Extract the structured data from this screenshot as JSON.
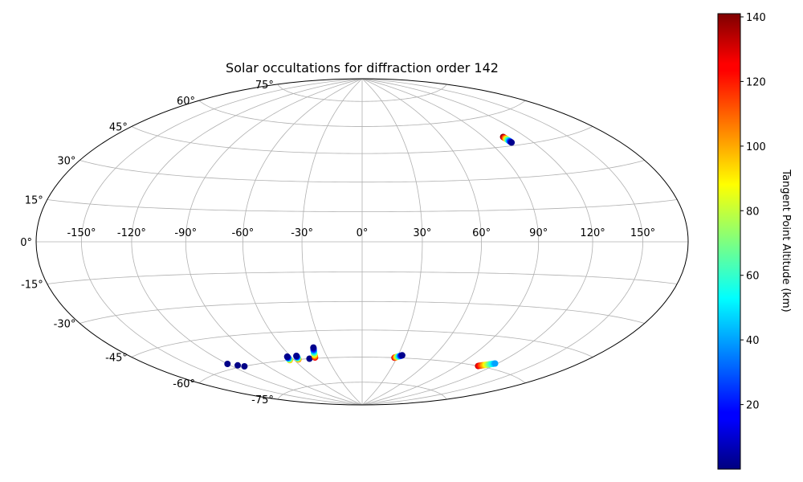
{
  "chart_data": {
    "type": "scatter",
    "projection": "aitoff-hammer",
    "title": "Solar occultations for diffraction order 142",
    "grid": true,
    "lon_ticks": [
      -150,
      -120,
      -90,
      -60,
      -30,
      0,
      30,
      60,
      90,
      120,
      150
    ],
    "lon_tick_labels": [
      "-150°",
      "-120°",
      "-90°",
      "-60°",
      "-30°",
      "0°",
      "30°",
      "60°",
      "90°",
      "120°",
      "150°"
    ],
    "lat_ticks": [
      75,
      60,
      45,
      30,
      15,
      0,
      -15,
      -30,
      -45,
      -60,
      -75
    ],
    "lat_tick_labels": [
      "75°",
      "60°",
      "45°",
      "30°",
      "15°",
      "0°",
      "-15°",
      "-30°",
      "-45°",
      "-60°",
      "-75°"
    ],
    "colorbar": {
      "label": "Tangent Point Altitude (km)",
      "vmin": 0,
      "vmax": 141,
      "ticks": [
        20,
        40,
        60,
        80,
        100,
        120,
        140
      ],
      "tick_labels": [
        "20",
        "40",
        "60",
        "80",
        "100",
        "120",
        "140"
      ],
      "colormap": "jet"
    },
    "tracks": [
      {
        "start": [
          104,
          49.5
        ],
        "end": [
          105,
          46.5
        ],
        "alt_start": 141,
        "alt_end": 2
      },
      {
        "start": [
          -120,
          -57.5
        ],
        "end": [
          -120,
          -57.5
        ],
        "alt_start": 1,
        "alt_end": 1
      },
      {
        "start": [
          -114,
          -59
        ],
        "end": [
          -114,
          -59
        ],
        "alt_start": 1,
        "alt_end": 1
      },
      {
        "start": [
          -110,
          -60
        ],
        "end": [
          -110,
          -60
        ],
        "alt_start": 1,
        "alt_end": 1
      },
      {
        "start": [
          -64,
          -60
        ],
        "end": [
          -63,
          -58
        ],
        "alt_start": 100,
        "alt_end": 2
      },
      {
        "start": [
          -56,
          -60
        ],
        "end": [
          -55,
          -58
        ],
        "alt_start": 110,
        "alt_end": 2
      },
      {
        "start": [
          -46,
          -60
        ],
        "end": [
          -46,
          -60
        ],
        "alt_start": 1,
        "alt_end": 1
      },
      {
        "start": [
          -40.5,
          -59.5
        ],
        "end": [
          -37,
          -54
        ],
        "alt_start": 125,
        "alt_end": 2
      },
      {
        "start": [
          28,
          -60
        ],
        "end": [
          33.5,
          -58.5
        ],
        "alt_start": 130,
        "alt_end": 2
      },
      {
        "start": [
          108,
          -60
        ],
        "end": [
          118,
          -57.5
        ],
        "alt_start": 130,
        "alt_end": 40
      }
    ]
  }
}
